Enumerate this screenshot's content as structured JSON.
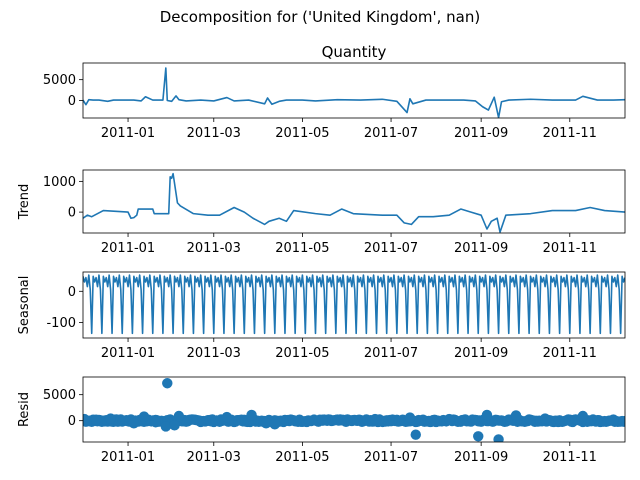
{
  "figure": {
    "suptitle": "Decomposition for ('United Kingdom', nan)",
    "color": "#1f77b4"
  },
  "chart_data": [
    {
      "type": "line",
      "panel": "observed",
      "title": "Quantity",
      "ylabel": "",
      "ylim": [
        -4200,
        9000
      ],
      "yticks": [
        0,
        5000
      ],
      "xlim": [
        "2010-12-01",
        "2011-12-09"
      ],
      "xticks": [
        "2011-01-01",
        "2011-03-01",
        "2011-05-01",
        "2011-07-01",
        "2011-09-01",
        "2011-11-01"
      ],
      "xticklabels": [
        "2011-01",
        "2011-03",
        "2011-05",
        "2011-07",
        "2011-09",
        "2011-11"
      ],
      "x": [
        "2010-12-01",
        "2010-12-03",
        "2010-12-05",
        "2010-12-08",
        "2010-12-12",
        "2010-12-18",
        "2010-12-22",
        "2011-01-05",
        "2011-01-10",
        "2011-01-13",
        "2011-01-18",
        "2011-01-25",
        "2011-01-27",
        "2011-01-28",
        "2011-01-31",
        "2011-02-03",
        "2011-02-05",
        "2011-02-10",
        "2011-02-20",
        "2011-03-01",
        "2011-03-10",
        "2011-03-15",
        "2011-03-25",
        "2011-04-05",
        "2011-04-07",
        "2011-04-10",
        "2011-04-15",
        "2011-04-20",
        "2011-05-01",
        "2011-05-10",
        "2011-05-25",
        "2011-06-10",
        "2011-06-25",
        "2011-07-05",
        "2011-07-12",
        "2011-07-14",
        "2011-07-16",
        "2011-07-25",
        "2011-08-05",
        "2011-08-20",
        "2011-08-28",
        "2011-09-02",
        "2011-09-06",
        "2011-09-10",
        "2011-09-13",
        "2011-09-15",
        "2011-09-20",
        "2011-10-05",
        "2011-10-20",
        "2011-11-05",
        "2011-11-10",
        "2011-11-20",
        "2011-12-01",
        "2011-12-09"
      ],
      "values": [
        100,
        -1000,
        200,
        100,
        100,
        -200,
        100,
        100,
        -100,
        900,
        100,
        100,
        7800,
        0,
        -200,
        1100,
        200,
        -100,
        100,
        -100,
        700,
        -100,
        100,
        -800,
        600,
        -900,
        -200,
        100,
        100,
        -100,
        200,
        100,
        300,
        -200,
        -2900,
        400,
        -800,
        100,
        100,
        100,
        -100,
        -1500,
        -2300,
        800,
        -4100,
        -300,
        100,
        300,
        100,
        100,
        1000,
        100,
        100,
        200
      ]
    },
    {
      "type": "line",
      "panel": "trend",
      "title": "",
      "ylabel": "Trend",
      "ylim": [
        -680,
        1370
      ],
      "yticks": [
        0,
        1000
      ],
      "xlim": [
        "2010-12-01",
        "2011-12-09"
      ],
      "xticks": [
        "2011-01-01",
        "2011-03-01",
        "2011-05-01",
        "2011-07-01",
        "2011-09-01",
        "2011-11-01"
      ],
      "xticklabels": [
        "2011-01",
        "2011-03",
        "2011-05",
        "2011-07",
        "2011-09",
        "2011-11"
      ],
      "x": [
        "2010-12-01",
        "2010-12-04",
        "2010-12-07",
        "2010-12-15",
        "2011-01-01",
        "2011-01-03",
        "2011-01-05",
        "2011-01-07",
        "2011-01-08",
        "2011-01-18",
        "2011-01-19",
        "2011-01-29",
        "2011-01-30",
        "2011-01-31",
        "2011-02-01",
        "2011-02-04",
        "2011-02-06",
        "2011-02-15",
        "2011-02-25",
        "2011-03-05",
        "2011-03-15",
        "2011-03-22",
        "2011-03-28",
        "2011-04-05",
        "2011-04-08",
        "2011-04-15",
        "2011-04-20",
        "2011-04-25",
        "2011-05-10",
        "2011-05-20",
        "2011-05-28",
        "2011-06-05",
        "2011-06-25",
        "2011-07-05",
        "2011-07-10",
        "2011-07-15",
        "2011-07-20",
        "2011-07-30",
        "2011-08-10",
        "2011-08-18",
        "2011-08-25",
        "2011-09-01",
        "2011-09-05",
        "2011-09-08",
        "2011-09-12",
        "2011-09-14",
        "2011-09-18",
        "2011-10-05",
        "2011-10-20",
        "2011-11-05",
        "2011-11-15",
        "2011-11-25",
        "2011-12-09"
      ],
      "values": [
        -200,
        -100,
        -150,
        50,
        0,
        -200,
        -180,
        -100,
        100,
        100,
        -50,
        -50,
        1150,
        1100,
        1250,
        300,
        200,
        -50,
        -100,
        -100,
        150,
        0,
        -200,
        -400,
        -300,
        -200,
        -300,
        50,
        -50,
        -100,
        100,
        -50,
        -100,
        -100,
        -350,
        -400,
        -150,
        -150,
        -100,
        100,
        0,
        -100,
        -550,
        -300,
        -200,
        -650,
        -100,
        -50,
        50,
        50,
        150,
        50,
        0
      ]
    },
    {
      "type": "line",
      "panel": "seasonal",
      "title": "",
      "ylabel": "Seasonal",
      "ylim": [
        -150,
        62
      ],
      "yticks": [
        -100,
        0
      ],
      "xlim": [
        "2010-12-01",
        "2011-12-09"
      ],
      "xticks": [
        "2011-01-01",
        "2011-03-01",
        "2011-05-01",
        "2011-07-01",
        "2011-09-01",
        "2011-11-01"
      ],
      "xticklabels": [
        "2011-01",
        "2011-03",
        "2011-05",
        "2011-07",
        "2011-09",
        "2011-11"
      ],
      "period_days": 7,
      "pattern": [
        48,
        30,
        44,
        15,
        52,
        5,
        -135
      ]
    },
    {
      "type": "scatter",
      "panel": "resid",
      "title": "",
      "ylabel": "Resid",
      "ylim": [
        -4100,
        8400
      ],
      "yticks": [
        0,
        5000
      ],
      "xlim": [
        "2010-12-01",
        "2011-12-09"
      ],
      "xticks": [
        "2011-01-01",
        "2011-03-01",
        "2011-05-01",
        "2011-07-01",
        "2011-09-01",
        "2011-11-01"
      ],
      "xticklabels": [
        "2011-01",
        "2011-03",
        "2011-05",
        "2011-07",
        "2011-09",
        "2011-11"
      ],
      "x": [
        "2010-12-02",
        "2010-12-10",
        "2010-12-20",
        "2011-01-05",
        "2011-01-12",
        "2011-01-20",
        "2011-01-27",
        "2011-01-28",
        "2011-02-02",
        "2011-02-05",
        "2011-03-10",
        "2011-03-27",
        "2011-04-06",
        "2011-04-12",
        "2011-05-15",
        "2011-06-20",
        "2011-07-14",
        "2011-07-18",
        "2011-08-10",
        "2011-08-30",
        "2011-09-05",
        "2011-09-13",
        "2011-09-25",
        "2011-10-15",
        "2011-11-10",
        "2011-12-01"
      ],
      "values": [
        300,
        200,
        400,
        -500,
        800,
        -300,
        -1100,
        7200,
        -900,
        900,
        700,
        1100,
        -500,
        -700,
        200,
        300,
        600,
        -2700,
        300,
        -3000,
        1100,
        -3600,
        1000,
        400,
        900,
        100
      ]
    }
  ]
}
